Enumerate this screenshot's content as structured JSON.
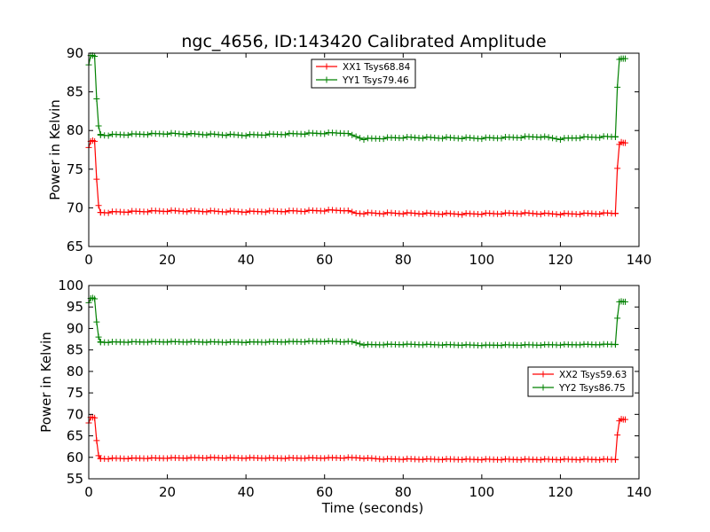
{
  "title": "ngc_4656, ID:143420 Calibrated Amplitude",
  "chart_data": [
    {
      "type": "line",
      "ylabel": "Power in Kelvin",
      "xlabel": "",
      "xlim": [
        0,
        140
      ],
      "ylim": [
        65,
        90
      ],
      "xticks": [
        "0",
        "20",
        "40",
        "60",
        "80",
        "100",
        "120",
        "140"
      ],
      "yticks": [
        "65",
        "70",
        "75",
        "80",
        "85",
        "90"
      ],
      "legend_position": "top-center",
      "series": [
        {
          "name": "XX1 Tsys68.84",
          "color": "#ff0000",
          "segments": [
            {
              "x": [
                0,
                0.5,
                1,
                1.5,
                2,
                2.5,
                3
              ],
              "y": [
                77.8,
                78.6,
                78.7,
                78.6,
                73.7,
                70.3,
                69.4
              ]
            },
            {
              "x0": 3,
              "x1": 134,
              "step": 1,
              "levels": [
                [
                  3,
                  69.4
                ],
                [
                  10,
                  69.5
                ],
                [
                  20,
                  69.6
                ],
                [
                  40,
                  69.5
                ],
                [
                  55,
                  69.6
                ],
                [
                  65,
                  69.7
                ],
                [
                  68,
                  69.3
                ],
                [
                  80,
                  69.3
                ],
                [
                  95,
                  69.2
                ],
                [
                  110,
                  69.3
                ],
                [
                  120,
                  69.2
                ],
                [
                  134,
                  69.3
                ]
              ]
            },
            {
              "x": [
                134,
                134.5,
                135,
                135.5,
                136,
                136.5
              ],
              "y": [
                69.3,
                75.1,
                78.2,
                78.5,
                78.4,
                78.4
              ]
            }
          ]
        },
        {
          "name": "YY1 Tsys79.46",
          "color": "#008000",
          "segments": [
            {
              "x": [
                0,
                0.5,
                1,
                1.5,
                2,
                2.5,
                3
              ],
              "y": [
                88.5,
                89.7,
                89.7,
                89.6,
                84.1,
                80.6,
                79.5
              ]
            },
            {
              "x0": 3,
              "x1": 134,
              "step": 1,
              "levels": [
                [
                  3,
                  79.4
                ],
                [
                  20,
                  79.6
                ],
                [
                  40,
                  79.4
                ],
                [
                  55,
                  79.6
                ],
                [
                  65,
                  79.7
                ],
                [
                  70,
                  78.9
                ],
                [
                  80,
                  79.1
                ],
                [
                  100,
                  79.0
                ],
                [
                  115,
                  79.2
                ],
                [
                  120,
                  78.9
                ],
                [
                  125,
                  79.1
                ],
                [
                  134,
                  79.2
                ]
              ]
            },
            {
              "x": [
                134,
                134.5,
                135,
                135.5,
                136,
                136.5
              ],
              "y": [
                79.2,
                85.6,
                89.2,
                89.3,
                89.3,
                89.3
              ]
            }
          ]
        }
      ]
    },
    {
      "type": "line",
      "ylabel": "Power in Kelvin",
      "xlabel": "Time (seconds)",
      "xlim": [
        0,
        140
      ],
      "ylim": [
        55,
        100
      ],
      "xticks": [
        "0",
        "20",
        "40",
        "60",
        "80",
        "100",
        "120",
        "140"
      ],
      "yticks": [
        "55",
        "60",
        "65",
        "70",
        "75",
        "80",
        "85",
        "90",
        "95",
        "100"
      ],
      "legend_position": "center-right",
      "series": [
        {
          "name": "XX2 Tsys59.63",
          "color": "#ff0000",
          "segments": [
            {
              "x": [
                0,
                0.5,
                1,
                1.5,
                2,
                2.5,
                3
              ],
              "y": [
                68.0,
                69.3,
                69.3,
                69.2,
                63.9,
                60.4,
                59.7
              ]
            },
            {
              "x0": 3,
              "x1": 134,
              "step": 1,
              "levels": [
                [
                  3,
                  59.7
                ],
                [
                  30,
                  59.9
                ],
                [
                  50,
                  59.8
                ],
                [
                  68,
                  59.9
                ],
                [
                  75,
                  59.6
                ],
                [
                  100,
                  59.5
                ],
                [
                  134,
                  59.5
                ]
              ]
            },
            {
              "x": [
                134,
                134.5,
                135,
                135.5,
                136,
                136.5
              ],
              "y": [
                59.5,
                65.2,
                68.5,
                68.9,
                68.8,
                68.8
              ]
            }
          ]
        },
        {
          "name": "YY2 Tsys86.75",
          "color": "#008000",
          "segments": [
            {
              "x": [
                0,
                0.5,
                1,
                1.5,
                2,
                2.5,
                3
              ],
              "y": [
                96.0,
                97.0,
                97.1,
                96.9,
                91.5,
                88.0,
                86.9
              ]
            },
            {
              "x0": 3,
              "x1": 134,
              "step": 1,
              "levels": [
                [
                  3,
                  86.8
                ],
                [
                  20,
                  86.9
                ],
                [
                  40,
                  86.8
                ],
                [
                  60,
                  87.0
                ],
                [
                  67,
                  86.9
                ],
                [
                  70,
                  86.2
                ],
                [
                  80,
                  86.3
                ],
                [
                  100,
                  86.1
                ],
                [
                  120,
                  86.2
                ],
                [
                  134,
                  86.3
                ]
              ]
            },
            {
              "x": [
                134,
                134.5,
                135,
                135.5,
                136,
                136.5
              ],
              "y": [
                86.3,
                92.4,
                96.2,
                96.3,
                96.2,
                96.2
              ]
            }
          ]
        }
      ]
    }
  ]
}
